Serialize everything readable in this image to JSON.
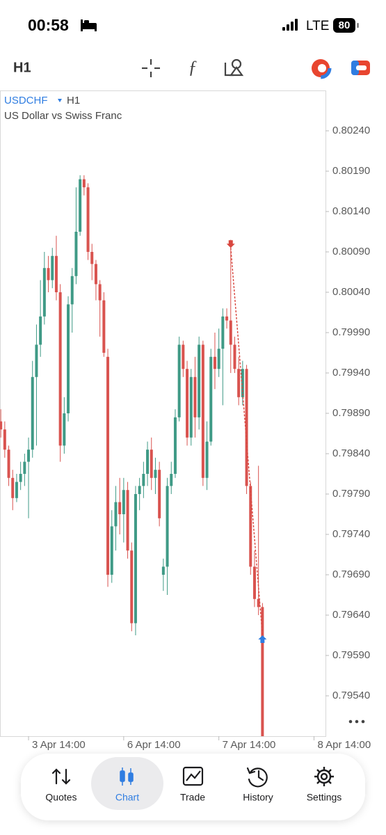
{
  "status_bar": {
    "time": "00:58",
    "network": "LTE",
    "battery": "80"
  },
  "chart_data": {
    "type": "candlestick",
    "symbol": "USDCHF",
    "timeframe": "H1",
    "subtitle": "US Dollar vs Swiss Franc",
    "open": [
      0.7988,
      0.7987,
      0.79845,
      0.7981,
      0.79785,
      0.79805,
      0.79815,
      0.7983,
      0.79845,
      0.79935,
      0.79975,
      0.8001,
      0.8007,
      0.80055,
      0.80085,
      0.8004,
      0.7985,
      0.7989,
      0.80025,
      0.8006,
      0.80115,
      0.8018,
      0.8017,
      0.8009,
      0.80075,
      0.8005,
      0.8003,
      0.7996,
      0.7969,
      0.7975,
      0.7978,
      0.79765,
      0.79795,
      0.7972,
      0.7963,
      0.7979,
      0.798,
      0.79815,
      0.79845,
      0.7981,
      0.7982,
      0.7969,
      0.797,
      0.798,
      0.79815,
      0.79885,
      0.79975,
      0.79945,
      0.7986,
      0.79935,
      0.79885,
      0.79975,
      0.7981,
      0.79855,
      0.7996,
      0.79945,
      0.7997,
      0.8001,
      0.80005,
      0.79975,
      0.79945,
      0.7991,
      0.79945,
      0.798,
      0.797,
      0.7966,
      0.7965
    ],
    "high": [
      0.79895,
      0.7988,
      0.7985,
      0.7982,
      0.79815,
      0.7983,
      0.7984,
      0.7986,
      0.79955,
      0.8,
      0.80055,
      0.8009,
      0.80085,
      0.80095,
      0.8011,
      0.8005,
      0.7991,
      0.80035,
      0.8007,
      0.8017,
      0.80185,
      0.80185,
      0.80175,
      0.801,
      0.8008,
      0.80055,
      0.8004,
      0.7997,
      0.7977,
      0.798,
      0.7981,
      0.7981,
      0.79805,
      0.7973,
      0.798,
      0.7981,
      0.7983,
      0.79855,
      0.7986,
      0.79835,
      0.7983,
      0.7971,
      0.7981,
      0.7983,
      0.79895,
      0.79985,
      0.7998,
      0.79955,
      0.79945,
      0.7996,
      0.79985,
      0.7998,
      0.7988,
      0.7997,
      0.7999,
      0.79995,
      0.8002,
      0.8002,
      0.80105,
      0.79985,
      0.7996,
      0.79955,
      0.7995,
      0.79805,
      0.7972,
      0.79825,
      0.79655
    ],
    "low": [
      0.7986,
      0.79835,
      0.798,
      0.7977,
      0.7978,
      0.79795,
      0.798,
      0.7976,
      0.79835,
      0.7985,
      0.7996,
      0.8,
      0.8004,
      0.80045,
      0.8003,
      0.7983,
      0.7984,
      0.7988,
      0.7999,
      0.8005,
      0.8011,
      0.8016,
      0.8008,
      0.80055,
      0.8003,
      0.79985,
      0.7996,
      0.79675,
      0.7968,
      0.7972,
      0.7974,
      0.7973,
      0.7971,
      0.7962,
      0.79615,
      0.7977,
      0.79785,
      0.798,
      0.79795,
      0.7979,
      0.7975,
      0.7967,
      0.79665,
      0.7979,
      0.7981,
      0.7988,
      0.79935,
      0.7985,
      0.7985,
      0.7986,
      0.7987,
      0.798,
      0.79795,
      0.7985,
      0.7992,
      0.79935,
      0.799,
      0.79995,
      0.7994,
      0.7994,
      0.799,
      0.799,
      0.7979,
      0.7969,
      0.7965,
      0.7964,
      0.7949
    ],
    "close": [
      0.7987,
      0.79845,
      0.7981,
      0.79785,
      0.79805,
      0.79815,
      0.7983,
      0.79845,
      0.79935,
      0.79975,
      0.8001,
      0.8007,
      0.80055,
      0.80085,
      0.8004,
      0.7985,
      0.7989,
      0.80025,
      0.8006,
      0.80115,
      0.8018,
      0.8017,
      0.8009,
      0.80075,
      0.8005,
      0.8003,
      0.79965,
      0.7969,
      0.7975,
      0.7978,
      0.79765,
      0.79795,
      0.7972,
      0.7963,
      0.7979,
      0.798,
      0.79815,
      0.79845,
      0.7981,
      0.7982,
      0.7976,
      0.797,
      0.798,
      0.79815,
      0.79885,
      0.79975,
      0.79945,
      0.7986,
      0.79935,
      0.79885,
      0.79975,
      0.7981,
      0.79855,
      0.7996,
      0.79945,
      0.7997,
      0.8001,
      0.80005,
      0.79975,
      0.79945,
      0.7991,
      0.79945,
      0.798,
      0.797,
      0.7966,
      0.7965,
      0.7949
    ],
    "up_color": "#3f9a86",
    "down_color": "#d9534f",
    "xlim": [
      -0.2,
      81.9
    ],
    "ylim": [
      0.7949,
      0.8029
    ],
    "xticks": [
      {
        "value": 7,
        "label": "3 Apr 14:00"
      },
      {
        "value": 31,
        "label": "6 Apr 14:00"
      },
      {
        "value": 55,
        "label": "7 Apr 14:00"
      },
      {
        "value": 79,
        "label": "8 Apr 14:00"
      }
    ],
    "yticks": [
      {
        "value": 0.8024,
        "label": "0.80240"
      },
      {
        "value": 0.8019,
        "label": "0.80190"
      },
      {
        "value": 0.8014,
        "label": "0.80140"
      },
      {
        "value": 0.8009,
        "label": "0.80090"
      },
      {
        "value": 0.8004,
        "label": "0.80040"
      },
      {
        "value": 0.7999,
        "label": "0.79990"
      },
      {
        "value": 0.7994,
        "label": "0.79940"
      },
      {
        "value": 0.7989,
        "label": "0.79890"
      },
      {
        "value": 0.7984,
        "label": "0.79840"
      },
      {
        "value": 0.7979,
        "label": "0.79790"
      },
      {
        "value": 0.7974,
        "label": "0.79740"
      },
      {
        "value": 0.7969,
        "label": "0.79690"
      },
      {
        "value": 0.7964,
        "label": "0.79640"
      },
      {
        "value": 0.7959,
        "label": "0.79590"
      },
      {
        "value": 0.7954,
        "label": "0.79540"
      }
    ],
    "trade": {
      "x": [
        58,
        66
      ],
      "y": [
        0.80095,
        0.79615
      ],
      "sell_color": "#d9473f",
      "buy_color": "#2f7de1"
    }
  },
  "tabs": [
    "Quotes",
    "Chart",
    "Trade",
    "History",
    "Settings"
  ]
}
